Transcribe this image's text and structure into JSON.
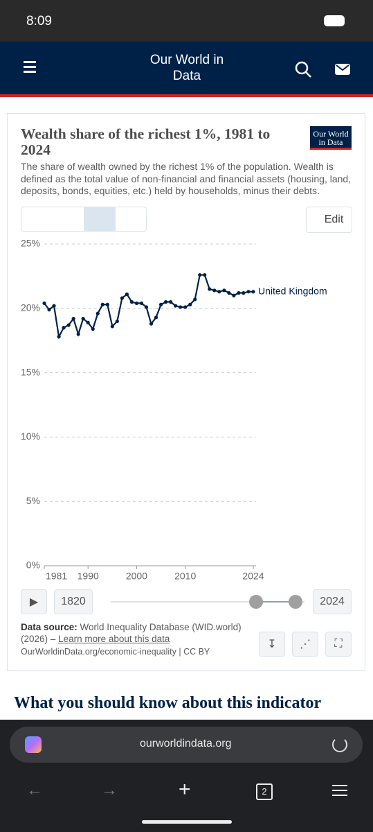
{
  "status": {
    "time": "8:09"
  },
  "header": {
    "brand": "Our World in Data"
  },
  "logo": {
    "text": "Our World in Data"
  },
  "chart_data": {
    "type": "line",
    "title": "Wealth share of the richest 1%, 1981 to 2024",
    "subtitle": "The share of wealth owned by the richest 1% of the population. Wealth is defined as the total value of non-financial and financial assets (housing, land, deposits, bonds, equities, etc.) held by households, minus their debts.",
    "x": [
      1981,
      1982,
      1983,
      1984,
      1985,
      1986,
      1987,
      1988,
      1989,
      1990,
      1991,
      1992,
      1993,
      1994,
      1995,
      1996,
      1997,
      1998,
      1999,
      2000,
      2001,
      2002,
      2003,
      2004,
      2005,
      2006,
      2007,
      2008,
      2009,
      2010,
      2011,
      2012,
      2013,
      2014,
      2015,
      2016,
      2017,
      2018,
      2019,
      2020,
      2021,
      2022,
      2023,
      2024
    ],
    "series": [
      {
        "name": "United Kingdom",
        "color": "#002147",
        "values": [
          20.4,
          19.9,
          20.2,
          17.8,
          18.5,
          18.7,
          19.2,
          18.0,
          19.2,
          18.9,
          18.4,
          19.6,
          20.3,
          20.3,
          18.6,
          19.0,
          20.8,
          21.1,
          20.5,
          20.4,
          20.4,
          20.1,
          18.8,
          19.3,
          20.3,
          20.5,
          20.5,
          20.2,
          20.1,
          20.1,
          20.3,
          20.7,
          22.6,
          22.6,
          21.5,
          21.4,
          21.3,
          21.4,
          21.2,
          21.0,
          21.2,
          21.2,
          21.3,
          21.3
        ]
      }
    ],
    "xlim": [
      1981,
      2024
    ],
    "xticks": [
      1981,
      1990,
      2000,
      2010,
      2024
    ],
    "ylim": [
      0,
      25
    ],
    "yticks": [
      {
        "value": 0,
        "label": "0%"
      },
      {
        "value": 5,
        "label": "5%"
      },
      {
        "value": 10,
        "label": "10%"
      },
      {
        "value": 15,
        "label": "15%"
      },
      {
        "value": 20,
        "label": "20%"
      },
      {
        "value": 25,
        "label": "25%"
      }
    ],
    "grid": true
  },
  "controls": {
    "edit": "Edit",
    "start": "1820",
    "end": "2024"
  },
  "source": {
    "label": "Data source:",
    "text": "World Inequality Database (WID.world) (2026) –",
    "link": "Learn more about this data",
    "footer": "OurWorldinData.org/economic-inequality | CC BY"
  },
  "section": {
    "heading": "What you should know about this indicator"
  },
  "browser": {
    "url": "ourworldindata.org",
    "tabs": "2"
  }
}
